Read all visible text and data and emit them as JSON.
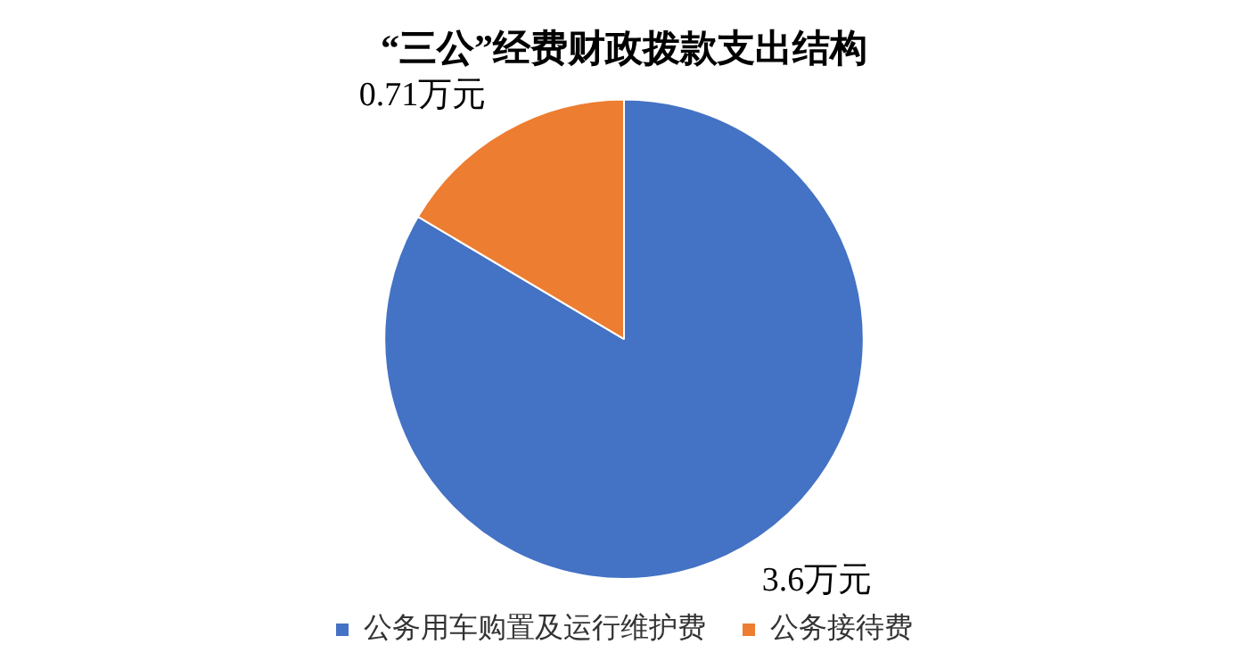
{
  "chart_data": {
    "type": "pie",
    "title": "“三公”经费财政拨款支出结构",
    "categories": [
      "公务用车购置及运行维护费",
      "公务接待费"
    ],
    "values": [
      3.6,
      0.71
    ],
    "value_labels": [
      "3.6万元",
      "0.71万元"
    ],
    "colors": [
      "#4472c4",
      "#ed7d31"
    ],
    "legend": "bottom"
  }
}
